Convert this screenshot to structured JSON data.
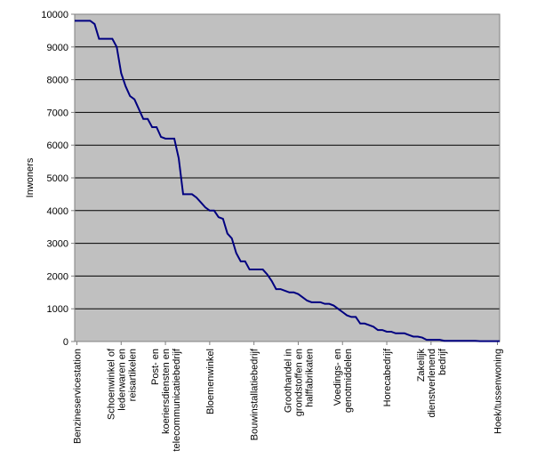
{
  "chart_data": {
    "type": "line",
    "title": "",
    "xlabel": "",
    "ylabel": "Inwoners",
    "ylim": [
      0,
      10000
    ],
    "yticks": [
      0,
      1000,
      2000,
      3000,
      4000,
      5000,
      6000,
      7000,
      8000,
      9000,
      10000
    ],
    "grid": "horizontal",
    "plot_background": "#C0C0C0",
    "line_color": "#000080",
    "n_points": 96,
    "category_labels": [
      {
        "index": 0,
        "text": "Benzineservicestation"
      },
      {
        "index": 10,
        "text": "Schoenwinkel of lederwaren en reisartikelen"
      },
      {
        "index": 20,
        "text": "Post- en koeriersdiensten en telecommunicatiebedrijf"
      },
      {
        "index": 30,
        "text": "Bloemenwinkel"
      },
      {
        "index": 40,
        "text": "Bouwinstallatiebedrijf"
      },
      {
        "index": 50,
        "text": "Groothandel in grondstoffen en halffabrikaten"
      },
      {
        "index": 60,
        "text": "Voedings- en genotmiddelen"
      },
      {
        "index": 70,
        "text": "Horecabedrijf"
      },
      {
        "index": 80,
        "text": "Zakelijk dienstverlenend bedrijf"
      },
      {
        "index": 95,
        "text": "Hoek/tussenwoning"
      }
    ],
    "series": [
      {
        "values": [
          9800,
          9800,
          9800,
          9800,
          9700,
          9250,
          9250,
          9250,
          9250,
          9000,
          8200,
          7800,
          7500,
          7400,
          7100,
          6800,
          6800,
          6550,
          6550,
          6250,
          6200,
          6200,
          6200,
          5600,
          4500,
          4500,
          4500,
          4400,
          4250,
          4100,
          4000,
          4000,
          3800,
          3750,
          3300,
          3150,
          2700,
          2450,
          2450,
          2200,
          2200,
          2200,
          2200,
          2050,
          1850,
          1600,
          1600,
          1550,
          1500,
          1500,
          1450,
          1350,
          1250,
          1200,
          1200,
          1200,
          1150,
          1150,
          1100,
          1000,
          900,
          800,
          750,
          750,
          550,
          550,
          500,
          450,
          350,
          350,
          300,
          300,
          250,
          250,
          250,
          200,
          150,
          150,
          120,
          50,
          50,
          50,
          50,
          20,
          20,
          20,
          20,
          20,
          20,
          20,
          20,
          10,
          10,
          10,
          10,
          10
        ]
      }
    ]
  }
}
